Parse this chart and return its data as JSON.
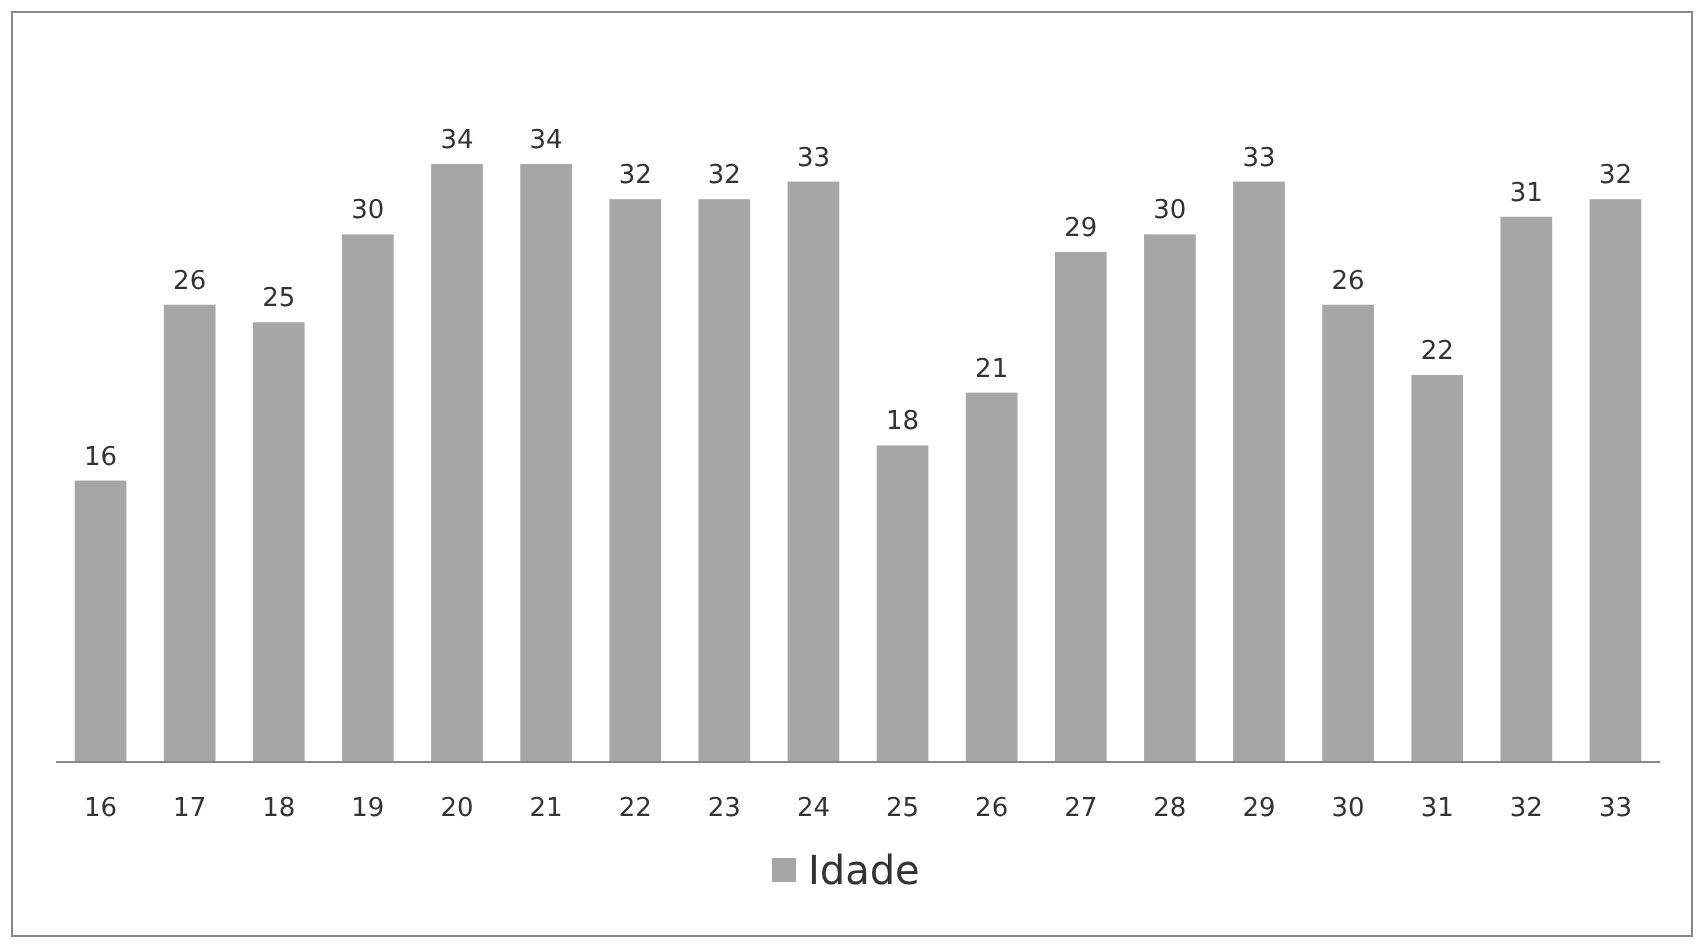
{
  "chart_data": {
    "type": "bar",
    "categories": [
      "16",
      "17",
      "18",
      "19",
      "20",
      "21",
      "22",
      "23",
      "24",
      "25",
      "26",
      "27",
      "28",
      "29",
      "30",
      "31",
      "32",
      "33"
    ],
    "series": [
      {
        "name": "Idade",
        "color": "#a6a6a6",
        "values": [
          16,
          26,
          25,
          30,
          34,
          34,
          32,
          32,
          33,
          18,
          21,
          29,
          30,
          33,
          26,
          22,
          31,
          32
        ]
      }
    ],
    "data_labels": true,
    "legend": "bottom",
    "tick_labels": "x"
  }
}
